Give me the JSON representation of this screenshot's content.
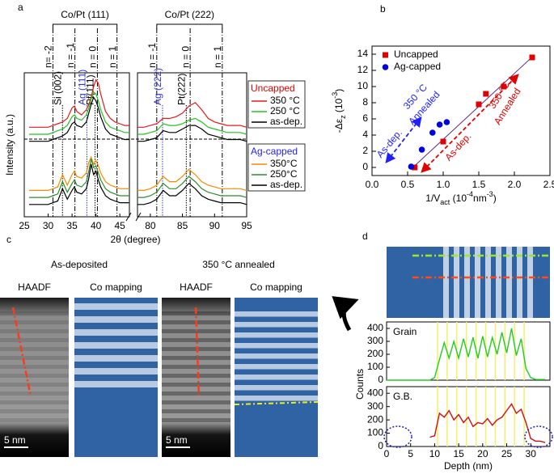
{
  "chart_data": [
    {
      "type": "line",
      "panel": "a",
      "xlabel": "2θ (degree)",
      "ylabel": "Intensity (a.u.)",
      "xlim": [
        25,
        95
      ],
      "xbreak": [
        47,
        78
      ],
      "ylim": [
        1.2,
        9.4
      ],
      "xticks": [
        25,
        30,
        35,
        40,
        45,
        80,
        85,
        90,
        95
      ],
      "x": [
        26,
        28,
        30,
        31,
        32,
        33,
        34,
        35,
        35.5,
        36,
        37,
        38,
        38.5,
        39,
        39.5,
        40,
        40.5,
        41,
        42,
        43,
        44,
        45,
        46,
        47,
        60,
        78,
        79,
        80,
        81,
        82,
        83,
        84,
        85,
        86,
        87,
        88,
        89,
        90,
        91,
        92,
        93,
        94,
        95
      ],
      "groups": [
        {
          "name": "Uncapped",
          "color": "#e00000",
          "series": [
            {
              "name": "350 °C",
              "color": "#e41a1c",
              "values": [
                6.3,
                6.3,
                6.3,
                6.4,
                6.5,
                6.6,
                6.8,
                7.4,
                7.5,
                7.2,
                7.0,
                7.3,
                7.6,
                8.0,
                8.6,
                9.0,
                8.8,
                8.2,
                7.2,
                6.8,
                6.6,
                6.5,
                6.4,
                6.4,
                null,
                6.3,
                6.3,
                6.4,
                6.5,
                6.8,
                6.8,
                6.9,
                7.1,
                7.5,
                7.7,
                7.3,
                6.8,
                6.6,
                6.5,
                6.4,
                6.4,
                6.4,
                6.3
              ]
            },
            {
              "name": "250 °C",
              "color": "#22c322",
              "values": [
                5.9,
                5.9,
                5.9,
                6.0,
                6.1,
                6.2,
                6.4,
                6.9,
                7.0,
                6.8,
                6.7,
                7.0,
                7.4,
                7.9,
                8.3,
                8.2,
                7.8,
                7.3,
                6.6,
                6.3,
                6.2,
                6.1,
                6.0,
                6.0,
                null,
                5.9,
                5.9,
                6.0,
                6.1,
                6.5,
                6.4,
                6.4,
                6.5,
                6.7,
                6.8,
                6.6,
                6.3,
                6.2,
                6.1,
                6.0,
                6.0,
                6.0,
                5.9
              ]
            },
            {
              "name": "as-dep.",
              "color": "#000000",
              "values": [
                5.5,
                5.5,
                5.5,
                5.6,
                5.7,
                5.8,
                6.0,
                6.5,
                6.6,
                6.4,
                6.3,
                6.6,
                7.1,
                7.6,
                8.0,
                7.8,
                7.4,
                6.9,
                6.2,
                5.9,
                5.8,
                5.7,
                5.6,
                5.6,
                null,
                5.5,
                5.5,
                5.6,
                5.7,
                6.1,
                6.0,
                6.0,
                6.2,
                6.4,
                6.4,
                6.2,
                5.9,
                5.8,
                5.7,
                5.6,
                5.6,
                5.6,
                5.5
              ]
            }
          ]
        },
        {
          "name": "Ag-capped",
          "color": "#1f1fff",
          "series": [
            {
              "name": "350°C",
              "color": "#f08c00",
              "values": [
                2.7,
                2.7,
                2.7,
                2.8,
                2.9,
                3.6,
                3.0,
                3.6,
                3.8,
                3.5,
                3.4,
                3.7,
                4.3,
                4.6,
                4.2,
                4.4,
                4.1,
                3.7,
                3.2,
                3.0,
                2.9,
                2.8,
                2.8,
                2.8,
                null,
                2.7,
                2.7,
                2.8,
                3.0,
                3.5,
                3.2,
                3.2,
                3.5,
                3.9,
                3.6,
                3.2,
                3.0,
                2.9,
                2.8,
                2.8,
                2.8,
                2.8,
                2.7
              ]
            },
            {
              "name": "250°C",
              "color": "#2e8b2e",
              "values": [
                2.3,
                2.3,
                2.3,
                2.4,
                2.5,
                3.2,
                2.6,
                3.1,
                3.3,
                3.0,
                2.9,
                3.2,
                3.8,
                4.5,
                4.0,
                4.1,
                3.7,
                3.3,
                2.8,
                2.6,
                2.5,
                2.4,
                2.4,
                2.4,
                null,
                2.3,
                2.3,
                2.4,
                2.6,
                3.1,
                2.8,
                2.8,
                3.1,
                3.5,
                3.2,
                2.8,
                2.6,
                2.5,
                2.4,
                2.4,
                2.4,
                2.4,
                2.3
              ]
            },
            {
              "name": "as-dep.",
              "color": "#000000",
              "values": [
                1.9,
                1.9,
                1.9,
                2.0,
                2.1,
                2.8,
                2.2,
                2.7,
                2.9,
                2.6,
                2.5,
                2.8,
                3.4,
                4.2,
                3.6,
                3.8,
                3.3,
                2.9,
                2.4,
                2.2,
                2.1,
                2.0,
                2.0,
                2.0,
                null,
                1.9,
                1.9,
                2.0,
                2.2,
                2.7,
                2.4,
                2.4,
                2.7,
                3.1,
                2.8,
                2.4,
                2.2,
                2.1,
                2.0,
                2.0,
                2.0,
                2.0,
                1.9
              ]
            }
          ]
        }
      ],
      "brackets": [
        {
          "label": "Co/Pt (111)",
          "range": [
            31,
            44.4
          ]
        },
        {
          "label": "Co/Pt (222)",
          "range": [
            81,
            91.2
          ]
        }
      ],
      "reference_lines": [
        {
          "x": 31,
          "label": "n= -2",
          "style": "dashdot",
          "color": "#000000"
        },
        {
          "x": 33,
          "label": "Si (002)",
          "style": "dotted",
          "color": "#000000"
        },
        {
          "x": 35.6,
          "label": "n = -1",
          "style": "dashdot",
          "color": "#000000"
        },
        {
          "x": 38.1,
          "label": "Ag (111)",
          "style": "dotted",
          "color": "#3333cc"
        },
        {
          "x": 39.8,
          "label": "Pt(111)",
          "style": "dotted",
          "color": "#000000"
        },
        {
          "x": 40.3,
          "label": "n = 0",
          "style": "dashdot",
          "color": "#000000"
        },
        {
          "x": 44.4,
          "label": "n = 1",
          "style": "dashdot",
          "color": "#000000"
        },
        {
          "x": 81,
          "label": "n = -1",
          "style": "dashdot",
          "color": "#000000"
        },
        {
          "x": 81.9,
          "label": "Ag (222)",
          "style": "dotted",
          "color": "#3333cc"
        },
        {
          "x": 85.6,
          "label": "Pt(222)",
          "style": "dotted",
          "color": "#000000"
        },
        {
          "x": 86.2,
          "label": "n = 0",
          "style": "dashdot",
          "color": "#000000"
        },
        {
          "x": 91.2,
          "label": "n = 1",
          "style": "dashdot",
          "color": "#000000"
        }
      ]
    },
    {
      "type": "scatter",
      "panel": "b",
      "xlabel": [
        {
          "text": "1/V"
        },
        {
          "text": "act",
          "script": "sub"
        },
        {
          "text": " (10"
        },
        {
          "text": "-4",
          "script": "super"
        },
        {
          "text": "nm"
        },
        {
          "text": "-3",
          "script": "super"
        },
        {
          "text": ")"
        }
      ],
      "ylabel": [
        {
          "text": "-Δε"
        },
        {
          "text": "z",
          "script": "sub"
        },
        {
          "text": " (10"
        },
        {
          "text": "-3",
          "script": "super"
        },
        {
          "text": ")"
        }
      ],
      "xlim": [
        0,
        2.5
      ],
      "ylim": [
        -1,
        15
      ],
      "xticks": [
        {
          "value": 0,
          "label": "0.0"
        },
        0.5,
        {
          "value": 1,
          "label": "1.0"
        },
        1.5,
        {
          "value": 2,
          "label": "2.0"
        },
        2.5
      ],
      "yticks": [
        0,
        2,
        4,
        6,
        8,
        10,
        12,
        14
      ],
      "legend": "upper left",
      "series": [
        {
          "name": "Uncapped",
          "color": "#e00000",
          "marker": "square",
          "x": [
            0.6,
            1.0,
            1.5,
            1.6,
            1.85,
            2.25
          ],
          "y": [
            0,
            3.2,
            7.8,
            9.1,
            10,
            13.6
          ]
        },
        {
          "name": "Ag-capped",
          "color": "#0000e0",
          "marker": "circle",
          "x": [
            0.55,
            0.7,
            0.85,
            0.95,
            1.05
          ],
          "y": [
            0.1,
            2.2,
            4.3,
            5.3,
            5.6
          ]
        }
      ],
      "fit_line": {
        "color": "#5b2a86",
        "x": [
          0.55,
          2.28
        ],
        "y": [
          -0.2,
          13.9
        ]
      },
      "annotations": [
        {
          "text": "350 °C",
          "color": "#1f1fff"
        },
        {
          "text": "Annealed",
          "color": "#1f1fff"
        },
        {
          "text": "As-dep.",
          "color": "#1f1fff"
        },
        {
          "text": "350 °C",
          "color": "#e00000"
        },
        {
          "text": "Annealed",
          "color": "#e00000"
        },
        {
          "text": "As-dep.",
          "color": "#e00000"
        }
      ]
    },
    {
      "type": "line",
      "panel": "d",
      "annotation": "Grain",
      "xlim": [
        0,
        34
      ],
      "ylim": [
        0,
        450
      ],
      "yticks": [
        0,
        100,
        200,
        300,
        400
      ],
      "x": [
        0,
        5,
        9,
        10,
        11,
        12,
        13,
        14,
        15,
        16,
        17,
        18,
        19,
        20,
        21,
        22,
        23,
        24,
        25,
        26,
        27,
        28,
        29,
        30,
        31,
        32,
        33
      ],
      "color": "#22cc22",
      "values": [
        0,
        0,
        0,
        20,
        160,
        290,
        170,
        300,
        170,
        320,
        180,
        330,
        170,
        340,
        180,
        330,
        200,
        370,
        210,
        400,
        190,
        320,
        90,
        20,
        5,
        5,
        5
      ]
    },
    {
      "type": "line",
      "annotation": "G.B.",
      "xlabel": "Depth (nm)",
      "ylabel": "Counts",
      "xlim": [
        0,
        34
      ],
      "ylim": [
        0,
        450
      ],
      "xticks": [
        0,
        5,
        10,
        15,
        20,
        25,
        30
      ],
      "yticks": [
        0,
        100,
        200,
        300,
        400
      ],
      "x": [
        0,
        5,
        9,
        10,
        11,
        12,
        13,
        14,
        15,
        16,
        17,
        18,
        19,
        20,
        21,
        22,
        23,
        24,
        25,
        26,
        27,
        28,
        29,
        30,
        31,
        32,
        33
      ],
      "color": "#d01010",
      "values": [
        null,
        null,
        70,
        80,
        250,
        220,
        270,
        200,
        240,
        180,
        220,
        150,
        180,
        170,
        210,
        160,
        200,
        220,
        270,
        320,
        250,
        280,
        180,
        60,
        40,
        40,
        30
      ]
    }
  ],
  "panel_c": {
    "panel": "c",
    "columns": [
      {
        "title": "As-deposited",
        "images": [
          "HAADF",
          "Co mapping"
        ],
        "scale_bar": "5 nm"
      },
      {
        "title": "350 °C annealed",
        "images": [
          "HAADF",
          "Co mapping"
        ],
        "scale_bar": "5 nm"
      }
    ]
  }
}
